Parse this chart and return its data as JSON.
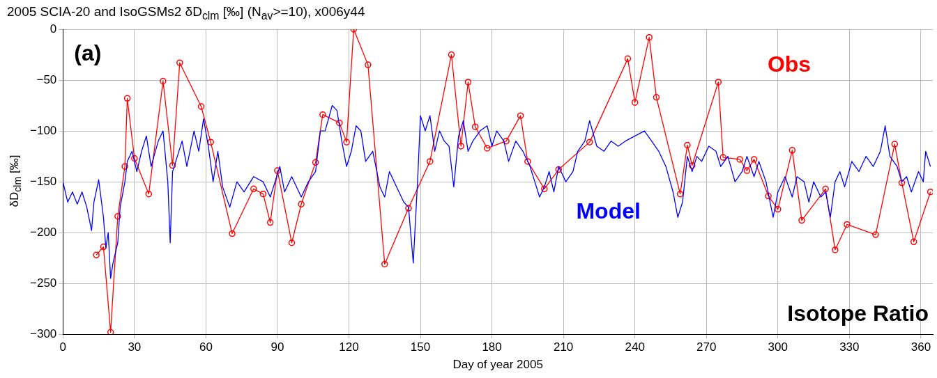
{
  "chart_data": {
    "type": "line",
    "title": "2005 SCIA-20 and IsoGSMs2 δD$_{clm}$ [‰] (N$_{av}$>=10), x006y44",
    "xlabel": "Day of year 2005",
    "ylabel": "δD$_{clm}$ [‰]",
    "xlim": [
      0,
      365
    ],
    "ylim": [
      -300,
      0
    ],
    "xticks": [
      0,
      30,
      60,
      90,
      120,
      150,
      180,
      210,
      240,
      270,
      300,
      330,
      360
    ],
    "yticks": [
      -300,
      -250,
      -200,
      -150,
      -100,
      -50,
      0
    ],
    "grid": true,
    "legend": false,
    "annotations": [
      "(a)",
      "Isotope Ratio"
    ],
    "series": [
      {
        "name": "Model",
        "type": "line",
        "color": "#0000ff",
        "marker": "none",
        "x": [
          0,
          2,
          4,
          6,
          8,
          10,
          12,
          13,
          15,
          17,
          18,
          19,
          20,
          21,
          23,
          24,
          26,
          27,
          29,
          31,
          33,
          35,
          37,
          40,
          42,
          44,
          45,
          46,
          48,
          50,
          52,
          55,
          57,
          59,
          61,
          63,
          65,
          67,
          70,
          73,
          76,
          80,
          84,
          87,
          89,
          91,
          93,
          96,
          100,
          103,
          106,
          108,
          110,
          113,
          115,
          117,
          119,
          121,
          123,
          125,
          127,
          130,
          133,
          135,
          137,
          140,
          143,
          145,
          147,
          149,
          150,
          152,
          154,
          156,
          158,
          160,
          162,
          164,
          166,
          168,
          170,
          172,
          175,
          178,
          180,
          182,
          185,
          187,
          190,
          193,
          196,
          198,
          200,
          202,
          204,
          206,
          208,
          211,
          214,
          216,
          219,
          221,
          224,
          227,
          230,
          233,
          236,
          240,
          244,
          247,
          250,
          253,
          256,
          258,
          260,
          262,
          264,
          266,
          268,
          271,
          274,
          276,
          279,
          282,
          285,
          287,
          290,
          292,
          295,
          298,
          300,
          303,
          306,
          308,
          311,
          313,
          315,
          318,
          320,
          322,
          324,
          326,
          328,
          331,
          334,
          337,
          340,
          343,
          345,
          347,
          350,
          352,
          354,
          356,
          359,
          361,
          362,
          364
        ],
        "values": [
          -150,
          -170,
          -160,
          -172,
          -160,
          -175,
          -198,
          -170,
          -148,
          -185,
          -215,
          -200,
          -245,
          -230,
          -210,
          -175,
          -150,
          -130,
          -120,
          -140,
          -120,
          -105,
          -135,
          -110,
          -100,
          -150,
          -210,
          -140,
          -125,
          -110,
          -135,
          -100,
          -120,
          -88,
          -115,
          -150,
          -120,
          -155,
          -175,
          -150,
          -160,
          -145,
          -150,
          -165,
          -150,
          -135,
          -160,
          -145,
          -165,
          -150,
          -140,
          -100,
          -100,
          -75,
          -80,
          -110,
          -135,
          -120,
          -95,
          -100,
          -130,
          -120,
          -155,
          -165,
          -140,
          -155,
          -170,
          -175,
          -230,
          -140,
          -85,
          -100,
          -85,
          -120,
          -100,
          -110,
          -115,
          -155,
          -105,
          -90,
          -120,
          -110,
          -100,
          -95,
          -115,
          -100,
          -110,
          -130,
          -110,
          -120,
          -135,
          -150,
          -165,
          -155,
          -140,
          -160,
          -135,
          -150,
          -140,
          -120,
          -110,
          -90,
          -115,
          -120,
          -110,
          -115,
          -110,
          -105,
          -100,
          -110,
          -120,
          -135,
          -160,
          -185,
          -170,
          -125,
          -140,
          -125,
          -130,
          -115,
          -120,
          -135,
          -125,
          -150,
          -140,
          -125,
          -145,
          -130,
          -150,
          -185,
          -160,
          -145,
          -165,
          -145,
          -150,
          -170,
          -150,
          -165,
          -160,
          -185,
          -150,
          -140,
          -155,
          -130,
          -140,
          -125,
          -135,
          -120,
          -95,
          -125,
          -135,
          -150,
          -145,
          -160,
          -140,
          -150,
          -120,
          -135
        ]
      },
      {
        "name": "Obs",
        "type": "line",
        "color": "#ff0000",
        "marker": "circle",
        "x": [
          14,
          17,
          20,
          23,
          26,
          27,
          30,
          36,
          42,
          46,
          49,
          58,
          62,
          71,
          80,
          84,
          87,
          90,
          96,
          100,
          106,
          109,
          116,
          119,
          122,
          128,
          135,
          145,
          154,
          163,
          167,
          170,
          173,
          178,
          186,
          192,
          195,
          202,
          208,
          221,
          237,
          240,
          246,
          249,
          259,
          262,
          264,
          275,
          277,
          284,
          287,
          290,
          296,
          300,
          306,
          310,
          320,
          324,
          329,
          341,
          349,
          352,
          357,
          364
        ],
        "values": [
          -222,
          -214,
          -298,
          -184,
          -135,
          -68,
          -127,
          -162,
          -51,
          -134,
          -33,
          -76,
          -111,
          -201,
          -157,
          -162,
          -190,
          -139,
          -210,
          -172,
          -131,
          -84,
          -92,
          -111,
          0,
          -35,
          -231,
          -176,
          -130,
          -25,
          -115,
          -52,
          -96,
          -117,
          -110,
          -85,
          -130,
          -157,
          -138,
          -111,
          -29,
          -72,
          -8,
          -67,
          -162,
          -114,
          -134,
          -52,
          -126,
          -128,
          -139,
          -128,
          -164,
          -177,
          -119,
          -188,
          -157,
          -217,
          -192,
          -202,
          -113,
          -151,
          -209,
          -160
        ]
      }
    ]
  }
}
